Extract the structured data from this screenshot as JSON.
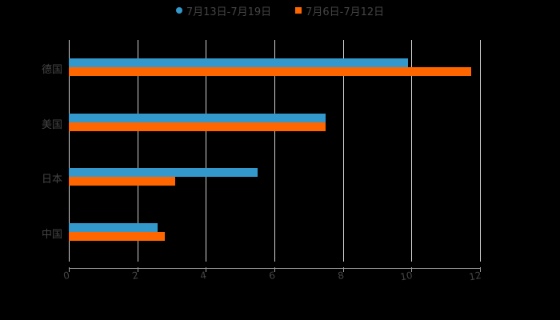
{
  "chart_data": {
    "type": "bar",
    "orientation": "horizontal",
    "title": "",
    "xlabel": "",
    "ylabel": "",
    "categories": [
      "德国",
      "美国",
      "日本",
      "中国"
    ],
    "series": [
      {
        "name": "7月13日-7月19日",
        "color": "#3399cc",
        "values": [
          9.9,
          7.5,
          5.5,
          2.6
        ]
      },
      {
        "name": "7月6日-7月12日",
        "color": "#ff6600",
        "values": [
          11.75,
          7.5,
          3.1,
          2.8
        ]
      }
    ],
    "xlim": [
      0,
      12
    ],
    "x_ticks": [
      "0",
      "2",
      "4",
      "6",
      "8",
      "10",
      "12"
    ],
    "grid": "vertical",
    "legend_position": "top"
  },
  "legend": {
    "items": [
      {
        "label": "7月13日-7月19日",
        "color": "#3399cc",
        "marker": "circle"
      },
      {
        "label": "7月6日-7月12日",
        "color": "#ff6600",
        "marker": "square"
      }
    ]
  }
}
